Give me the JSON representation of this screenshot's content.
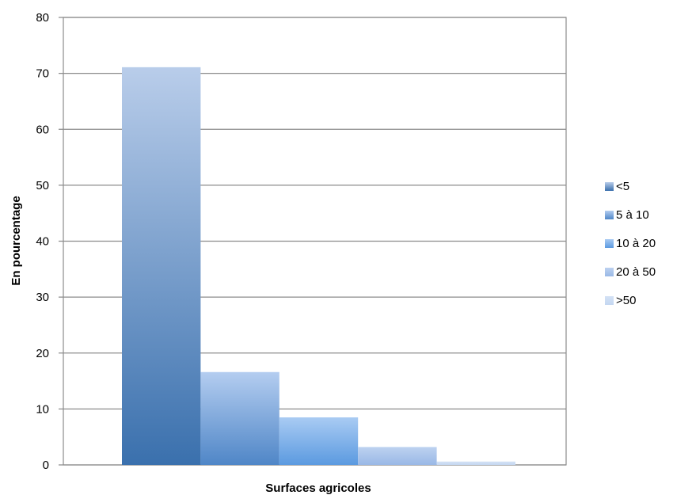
{
  "chart_data": {
    "type": "bar",
    "title": "",
    "xlabel": "Surfaces agricoles",
    "ylabel": "En pourcentage",
    "ylim": [
      0,
      80
    ],
    "yticks": [
      "0",
      "10",
      "20",
      "30",
      "40",
      "50",
      "60",
      "70",
      "80"
    ],
    "grid": true,
    "legend_position": "right",
    "series": [
      {
        "name": "<5",
        "value": 71.1,
        "color_top": "#b9cdea",
        "color_bottom": "#3a70ad"
      },
      {
        "name": "5 à 10",
        "value": 16.6,
        "color_top": "#b4cdf0",
        "color_bottom": "#4f86c7"
      },
      {
        "name": "10 à 20",
        "value": 8.5,
        "color_top": "#a9cbf3",
        "color_bottom": "#5b9ae0"
      },
      {
        "name": "20 à 50",
        "value": 3.2,
        "color_top": "#bdd2f0",
        "color_bottom": "#99b8e6"
      },
      {
        "name": ">50",
        "value": 0.6,
        "color_top": "#d3e1f5",
        "color_bottom": "#c4d7f1"
      }
    ]
  }
}
